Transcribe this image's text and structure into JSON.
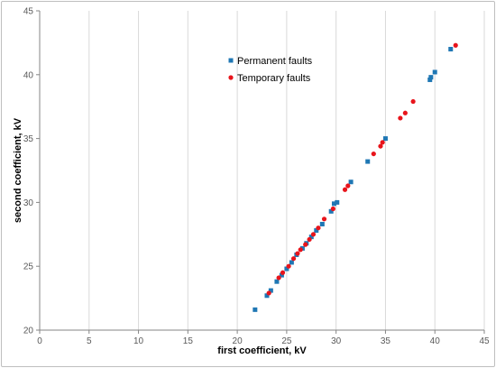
{
  "chart_data": {
    "type": "scatter",
    "title": "",
    "xlabel": "first coefficient, kV",
    "ylabel": "second coefficient, kV",
    "xlim": [
      0,
      45
    ],
    "ylim": [
      20,
      45
    ],
    "x_ticks": [
      0,
      5,
      10,
      15,
      20,
      25,
      30,
      35,
      40,
      45
    ],
    "y_ticks": [
      20,
      25,
      30,
      35,
      40,
      45
    ],
    "grid": "vertical",
    "legend_placement": "top-center",
    "series": [
      {
        "name": "Permanent faults",
        "marker": "square",
        "color": "#1f77b4",
        "points": [
          [
            21.8,
            21.6
          ],
          [
            23.0,
            22.7
          ],
          [
            23.4,
            23.1
          ],
          [
            24.0,
            23.8
          ],
          [
            24.5,
            24.3
          ],
          [
            25.0,
            24.8
          ],
          [
            25.5,
            25.3
          ],
          [
            26.0,
            25.9
          ],
          [
            26.6,
            26.4
          ],
          [
            27.0,
            26.8
          ],
          [
            27.5,
            27.3
          ],
          [
            28.0,
            27.8
          ],
          [
            28.6,
            28.3
          ],
          [
            29.5,
            29.3
          ],
          [
            29.8,
            29.9
          ],
          [
            30.1,
            30.0
          ],
          [
            31.5,
            31.6
          ],
          [
            33.2,
            33.2
          ],
          [
            35.0,
            35.0
          ],
          [
            39.5,
            39.6
          ],
          [
            39.6,
            39.8
          ],
          [
            40.0,
            40.2
          ],
          [
            41.6,
            42.0
          ]
        ]
      },
      {
        "name": "Temporary faults",
        "marker": "circle",
        "color": "#e8141b",
        "points": [
          [
            23.2,
            22.9
          ],
          [
            24.2,
            24.1
          ],
          [
            24.6,
            24.5
          ],
          [
            25.2,
            25.0
          ],
          [
            25.7,
            25.6
          ],
          [
            26.1,
            26.0
          ],
          [
            26.4,
            26.3
          ],
          [
            26.9,
            26.7
          ],
          [
            27.3,
            27.1
          ],
          [
            27.7,
            27.5
          ],
          [
            28.2,
            28.0
          ],
          [
            28.8,
            28.7
          ],
          [
            29.7,
            29.5
          ],
          [
            30.9,
            31.0
          ],
          [
            31.2,
            31.3
          ],
          [
            33.8,
            33.8
          ],
          [
            34.5,
            34.4
          ],
          [
            34.7,
            34.7
          ],
          [
            36.5,
            36.6
          ],
          [
            37.0,
            37.0
          ],
          [
            37.8,
            37.9
          ],
          [
            42.1,
            42.3
          ]
        ]
      }
    ]
  }
}
